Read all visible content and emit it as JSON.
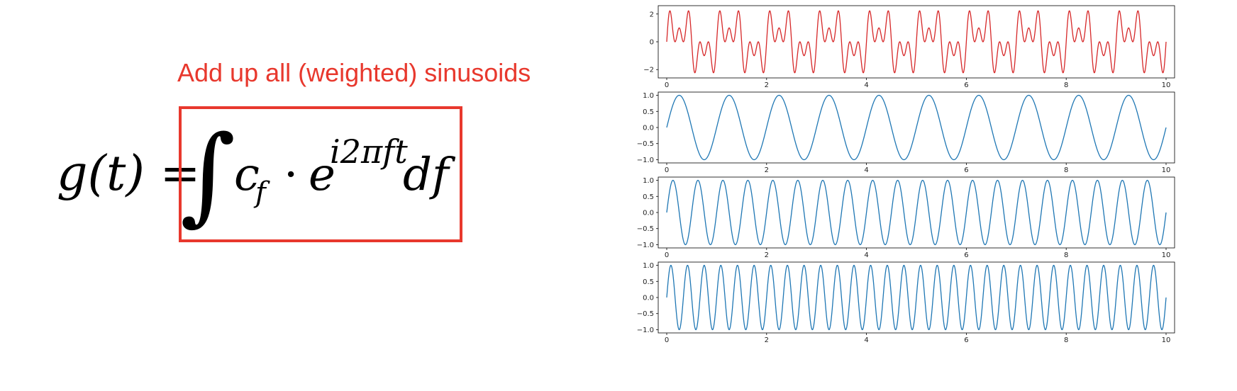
{
  "caption": "Add up all (weighted) sinusoids",
  "formula": {
    "lhs": "g(t) =",
    "integral": "∫",
    "coefficient": "c",
    "coefficient_subscript": "f",
    "dot": "·",
    "base": "e",
    "exponent": "i2πft",
    "differential": "df"
  },
  "colors": {
    "caption": "#e8382d",
    "box": "#e8382d",
    "sum_series": "#d62728",
    "component_series": "#1f77b4"
  },
  "chart_data": [
    {
      "type": "line",
      "title": "",
      "xlabel": "",
      "ylabel": "",
      "xlim": [
        0,
        10
      ],
      "ylim": [
        -2.6,
        2.6
      ],
      "xticks": [
        "0",
        "2",
        "4",
        "6",
        "8",
        "10"
      ],
      "yticks": [
        -2,
        0,
        2
      ],
      "ytick_labels": [
        "−2",
        "0",
        "2"
      ],
      "series": [
        {
          "function": "sin(2πt) + sin(2π·3t) + sin(2π·5t)",
          "components": [
            1,
            3,
            5
          ],
          "color": "#d62728"
        }
      ]
    },
    {
      "type": "line",
      "title": "",
      "xlabel": "",
      "ylabel": "",
      "xlim": [
        0,
        10
      ],
      "ylim": [
        -1.1,
        1.1
      ],
      "xticks": [
        "0",
        "2",
        "4",
        "6",
        "8",
        "10"
      ],
      "yticks": [
        1,
        0.5,
        0,
        -0.5,
        -1
      ],
      "ytick_labels": [
        "1.0",
        "0.5",
        "0.0",
        "−0.5",
        "−1.0"
      ],
      "series": [
        {
          "function": "sin(2π·1t)",
          "components": [
            1
          ],
          "color": "#1f77b4"
        }
      ]
    },
    {
      "type": "line",
      "title": "",
      "xlabel": "",
      "ylabel": "",
      "xlim": [
        0,
        10
      ],
      "ylim": [
        -1.1,
        1.1
      ],
      "xticks": [
        "0",
        "2",
        "4",
        "6",
        "8",
        "10"
      ],
      "yticks": [
        1,
        0.5,
        0,
        -0.5,
        -1
      ],
      "ytick_labels": [
        "1.0",
        "0.5",
        "0.0",
        "−0.5",
        "−1.0"
      ],
      "series": [
        {
          "function": "sin(2π·2t)",
          "components": [
            2
          ],
          "color": "#1f77b4"
        }
      ]
    },
    {
      "type": "line",
      "title": "",
      "xlabel": "",
      "ylabel": "",
      "xlim": [
        0,
        10
      ],
      "ylim": [
        -1.1,
        1.1
      ],
      "xticks": [
        "0",
        "2",
        "4",
        "6",
        "8",
        "10"
      ],
      "yticks": [
        1,
        0.5,
        0,
        -0.5,
        -1
      ],
      "ytick_labels": [
        "1.0",
        "0.5",
        "0.0",
        "−0.5",
        "−1.0"
      ],
      "series": [
        {
          "function": "sin(2π·3t)",
          "components": [
            3
          ],
          "color": "#1f77b4"
        }
      ]
    }
  ]
}
